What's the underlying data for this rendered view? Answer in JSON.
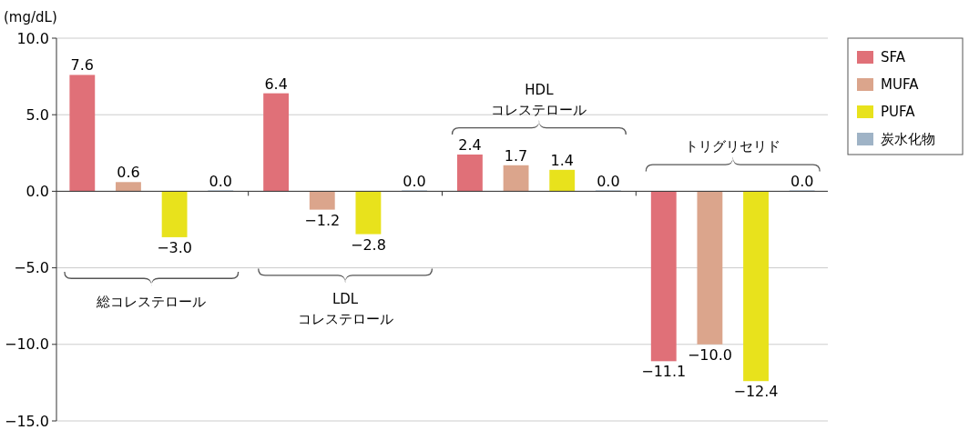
{
  "chart_data": {
    "type": "bar",
    "ylabel": "(mg/dL)",
    "categories": [
      "総コレステロール",
      "LDL\nコレステロール",
      "HDL\nコレステロール",
      "トリグリセリド"
    ],
    "series": [
      {
        "name": "SFA",
        "color": "#e07078",
        "values": [
          7.6,
          6.4,
          2.4,
          -11.1
        ],
        "value_labels": [
          "7.6",
          "6.4",
          "2.4",
          "−11.1"
        ]
      },
      {
        "name": "MUFA",
        "color": "#dba58c",
        "values": [
          0.6,
          -1.2,
          1.7,
          -10.0
        ],
        "value_labels": [
          "0.6",
          "−1.2",
          "1.7",
          "−10.0"
        ]
      },
      {
        "name": "PUFA",
        "color": "#e8e21c",
        "values": [
          -3.0,
          -2.8,
          1.4,
          -12.4
        ],
        "value_labels": [
          "−3.0",
          "−2.8",
          "1.4",
          "−12.4"
        ]
      },
      {
        "name": "炭水化物",
        "color": "#9fb3c6",
        "values": [
          0.0,
          0.0,
          0.0,
          0.0
        ],
        "value_labels": [
          "0.0",
          "0.0",
          "0.0",
          "0.0"
        ]
      }
    ],
    "ylim": [
      -15,
      10
    ],
    "yticks": [
      {
        "value": 10,
        "label": "10.0"
      },
      {
        "value": 5,
        "label": "5.0"
      },
      {
        "value": 0,
        "label": "0.0"
      },
      {
        "value": -5,
        "label": "−5.0"
      },
      {
        "value": -10,
        "label": "−10.0"
      },
      {
        "value": -15,
        "label": "−15.0"
      }
    ],
    "grid": "y",
    "legend": "right"
  }
}
